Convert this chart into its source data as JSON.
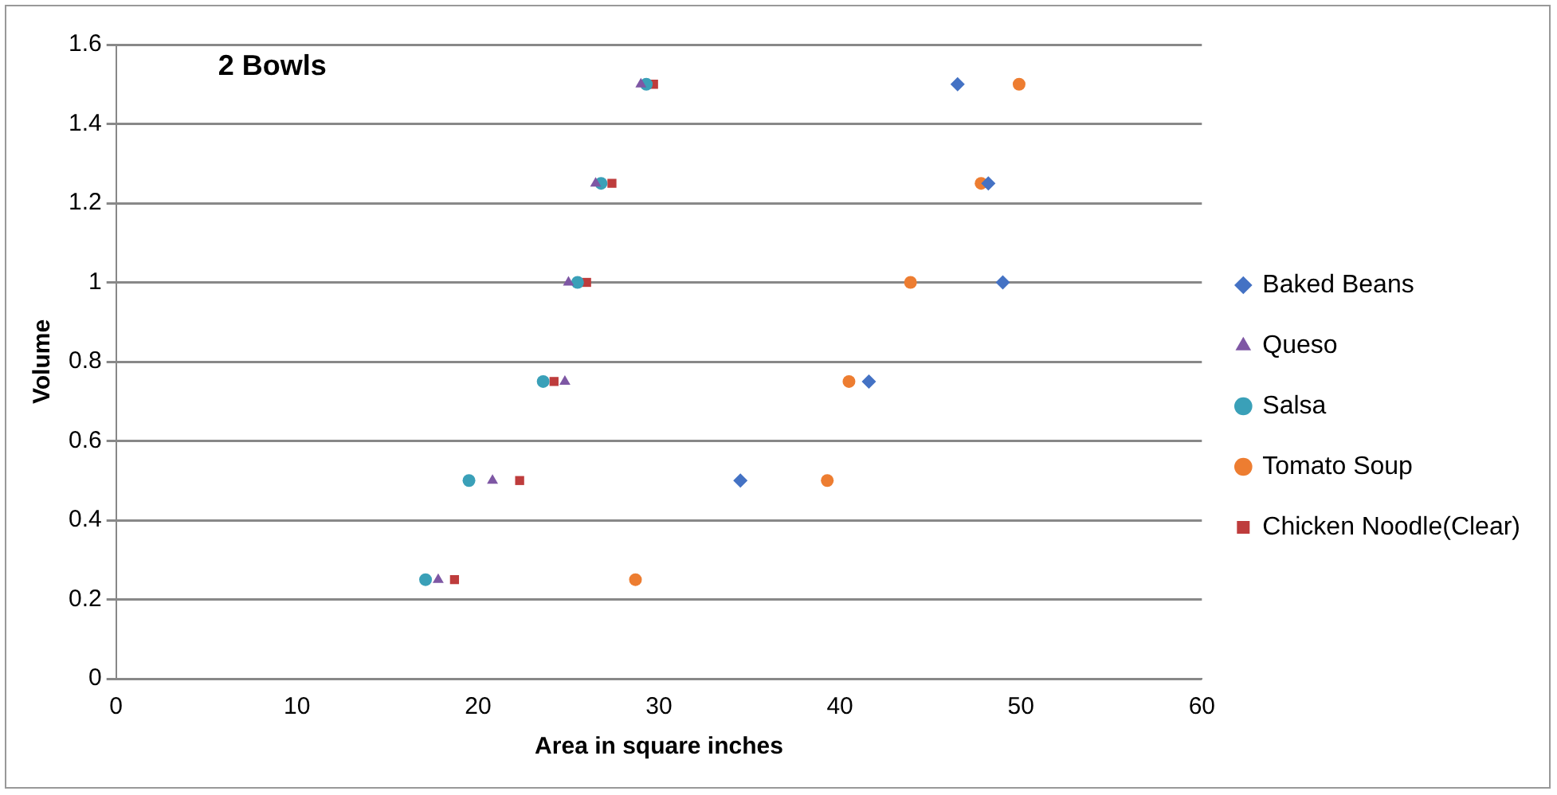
{
  "chart_data": {
    "type": "scatter",
    "title": "2 Bowls",
    "xlabel": "Area in square inches",
    "ylabel": "Volume",
    "xlim": [
      0,
      60
    ],
    "xticks": [
      0,
      10,
      20,
      30,
      40,
      50,
      60
    ],
    "ylim": [
      0,
      1.6
    ],
    "yticks": [
      0,
      {
        "value": 0.2,
        "label": "0.2"
      },
      {
        "value": 0.4,
        "label": "0.4"
      },
      {
        "value": 0.6,
        "label": "0.6"
      },
      {
        "value": 0.8,
        "label": "0.8"
      },
      1,
      {
        "value": 1.2,
        "label": "1.2"
      },
      {
        "value": 1.4,
        "label": "1.4"
      },
      {
        "value": 1.6,
        "label": "1.6"
      }
    ],
    "grid": "y",
    "legend": "right",
    "series": [
      {
        "name": "Baked Beans",
        "color": "#4472c4",
        "marker": "diamond",
        "x": [
          34.5,
          41.6,
          49.0,
          48.2,
          46.5
        ],
        "values": [
          0.5,
          0.75,
          1,
          1.25,
          1.5
        ]
      },
      {
        "name": "Queso",
        "color": "#7e57a4",
        "marker": "triangle",
        "x": [
          17.8,
          20.8,
          24.8,
          25.0,
          26.5,
          29.0
        ],
        "values": [
          0.25,
          0.5,
          0.75,
          1,
          1.25,
          1.5
        ]
      },
      {
        "name": "Salsa",
        "color": "#3aa0b8",
        "marker": "circle",
        "x": [
          17.1,
          19.5,
          23.6,
          25.5,
          26.8,
          29.3
        ],
        "values": [
          0.25,
          0.5,
          0.75,
          1,
          1.25,
          1.5
        ]
      },
      {
        "name": "Tomato Soup",
        "color": "#ed7d31",
        "marker": "circle",
        "x": [
          28.7,
          39.3,
          40.5,
          43.9,
          47.8,
          49.9
        ],
        "values": [
          0.25,
          0.5,
          0.75,
          1,
          1.25,
          1.5
        ]
      },
      {
        "name": "Chicken Noodle(Clear)",
        "color": "#be3c3c",
        "marker": "square",
        "x": [
          18.7,
          22.3,
          24.2,
          26.0,
          27.4,
          29.7
        ],
        "values": [
          0.25,
          0.5,
          0.75,
          1,
          1.25,
          1.5
        ]
      }
    ]
  }
}
